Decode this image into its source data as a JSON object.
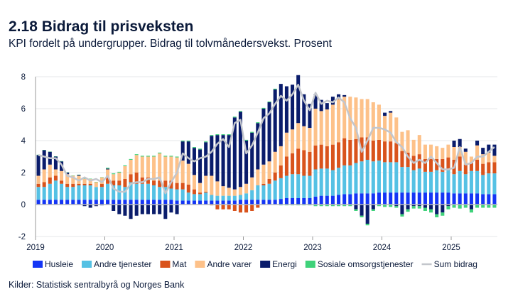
{
  "title": "2.18 Bidrag til prisveksten",
  "subtitle": "KPI fordelt på undergrupper. Bidrag til tolvmånedersvekst. Prosent",
  "source": "Kilder: Statistisk sentralbyrå og Norges Bank",
  "chart_data": {
    "type": "bar",
    "stacked": true,
    "title": "2.18 Bidrag til prisveksten",
    "ylabel": "",
    "xlabel": "",
    "ylim": [
      -2,
      8
    ],
    "yticks": [
      -2,
      0,
      2,
      4,
      6,
      8
    ],
    "xticks": [
      "2019",
      "2020",
      "2021",
      "2022",
      "2023",
      "2024",
      "2025"
    ],
    "x_start": "2019-01",
    "x_end": "2025-08",
    "frequency": "monthly",
    "grid": true,
    "legend_position": "bottom",
    "series": [
      {
        "name": "Husleie",
        "color": "#1435f5",
        "values": [
          0.3,
          0.3,
          0.3,
          0.3,
          0.3,
          0.3,
          0.3,
          0.3,
          0.3,
          0.3,
          0.3,
          0.3,
          0.3,
          0.3,
          0.3,
          0.3,
          0.3,
          0.3,
          0.3,
          0.3,
          0.3,
          0.3,
          0.3,
          0.3,
          0.25,
          0.25,
          0.25,
          0.25,
          0.25,
          0.25,
          0.25,
          0.25,
          0.25,
          0.25,
          0.25,
          0.3,
          0.3,
          0.3,
          0.3,
          0.3,
          0.3,
          0.3,
          0.35,
          0.4,
          0.4,
          0.4,
          0.4,
          0.4,
          0.5,
          0.55,
          0.55,
          0.55,
          0.6,
          0.65,
          0.65,
          0.7,
          0.7,
          0.7,
          0.7,
          0.75,
          0.75,
          0.75,
          0.75,
          0.75,
          0.75,
          0.75,
          0.75,
          0.75,
          0.75,
          0.75,
          0.75,
          0.75,
          0.7,
          0.7,
          0.7,
          0.7,
          0.7,
          0.65,
          0.65,
          0.65
        ]
      },
      {
        "name": "Andre tjenester",
        "color": "#55c1e4",
        "values": [
          0.8,
          0.8,
          1.0,
          1.2,
          1.0,
          0.8,
          0.8,
          0.9,
          0.9,
          0.9,
          0.8,
          0.8,
          1.0,
          0.9,
          0.9,
          0.8,
          1.1,
          1.0,
          1.0,
          1.0,
          0.9,
          0.8,
          0.8,
          0.7,
          0.7,
          0.7,
          0.5,
          0.4,
          0.4,
          0.5,
          0.35,
          0.3,
          0.3,
          0.3,
          0.3,
          0.3,
          0.4,
          0.6,
          0.9,
          0.9,
          1.0,
          1.2,
          1.3,
          1.4,
          1.5,
          1.5,
          1.4,
          1.4,
          1.7,
          1.7,
          1.7,
          1.6,
          1.7,
          1.8,
          1.8,
          1.9,
          2.0,
          2.1,
          2.0,
          2.0,
          1.9,
          1.9,
          1.9,
          1.6,
          1.6,
          1.4,
          1.5,
          1.3,
          1.3,
          1.4,
          1.3,
          1.4,
          1.2,
          1.4,
          1.2,
          1.4,
          1.4,
          1.2,
          1.3,
          1.3
        ]
      },
      {
        "name": "Mat",
        "color": "#d9531c",
        "values": [
          0.2,
          0.3,
          0.4,
          0.3,
          0.2,
          0.2,
          0.2,
          0.1,
          0.1,
          0.1,
          -0.05,
          0.2,
          0.4,
          0.3,
          0.3,
          0.5,
          0.5,
          0.7,
          0.4,
          0.4,
          0.3,
          0.4,
          0.4,
          0.5,
          0.4,
          0.4,
          0.5,
          0.3,
          0.1,
          0.05,
          -0.05,
          -0.3,
          -0.3,
          -0.3,
          -0.4,
          -0.5,
          -0.5,
          -0.4,
          -0.2,
          0.1,
          0.3,
          0.5,
          0.8,
          1.2,
          1.3,
          1.6,
          1.6,
          1.5,
          1.5,
          1.5,
          1.4,
          1.6,
          1.6,
          1.7,
          1.6,
          1.5,
          1.5,
          1.4,
          1.3,
          1.3,
          1.3,
          1.3,
          1.2,
          1.0,
          0.9,
          0.9,
          0.9,
          0.8,
          0.8,
          0.7,
          0.8,
          0.8,
          0.9,
          0.9,
          0.6,
          0.5,
          0.7,
          0.7,
          0.7,
          0.7
        ]
      },
      {
        "name": "Andre varer",
        "color": "#fdc189",
        "values": [
          0.5,
          0.8,
          0.8,
          0.4,
          0.6,
          0.6,
          0.5,
          0.5,
          0.3,
          0.3,
          0.3,
          0.4,
          0.5,
          0.4,
          0.5,
          0.8,
          0.9,
          1.1,
          1.3,
          1.3,
          1.5,
          1.7,
          1.5,
          1.5,
          1.6,
          1.4,
          1.3,
          0.9,
          0.6,
          1.0,
          1.2,
          0.9,
          0.6,
          0.5,
          0.4,
          0.5,
          0.6,
          0.8,
          1.0,
          1.2,
          1.1,
          1.3,
          1.2,
          1.5,
          1.5,
          1.6,
          1.5,
          1.5,
          2.3,
          2.1,
          2.3,
          2.5,
          2.7,
          2.6,
          2.7,
          2.6,
          2.4,
          2.4,
          2.4,
          2.2,
          1.6,
          1.8,
          1.6,
          1.2,
          1.4,
          1.0,
          1.2,
          0.9,
          0.9,
          0.8,
          0.7,
          0.8,
          0.8,
          0.6,
          0.8,
          0.4,
          0.9,
          0.6,
          0.6,
          0.4
        ]
      },
      {
        "name": "Energi",
        "color": "#0a1c6b",
        "values": [
          1.3,
          1.2,
          0.8,
          0.8,
          0.6,
          0.1,
          0.0,
          0.05,
          -0.1,
          -0.2,
          -0.05,
          -0.05,
          0.05,
          -0.4,
          -0.6,
          -0.7,
          -0.9,
          -0.7,
          -0.6,
          -0.6,
          -0.6,
          -0.6,
          -0.9,
          -0.5,
          -0.6,
          1.2,
          1.4,
          1.7,
          2.1,
          2.1,
          2.5,
          2.9,
          3.2,
          3.3,
          4.5,
          4.7,
          2.7,
          2.8,
          2.9,
          3.5,
          3.7,
          3.9,
          3.9,
          2.9,
          2.8,
          3.0,
          2.0,
          1.5,
          0.9,
          0.7,
          0.4,
          0.5,
          0.3,
          0.1,
          0.0,
          -0.3,
          -0.7,
          -1.2,
          -0.3,
          0.0,
          0.2,
          0.1,
          -0.1,
          -0.6,
          -0.3,
          -0.1,
          -0.1,
          -0.2,
          -0.3,
          -0.6,
          -0.5,
          -0.1,
          0.4,
          0.5,
          0.2,
          -0.3,
          0.3,
          0.4,
          0.5,
          0.7
        ]
      },
      {
        "name": "Sosiale omsorgstjenester",
        "color": "#3fd27a",
        "values": [
          0.02,
          0.02,
          0.02,
          0.02,
          0.02,
          0.02,
          0.02,
          0.02,
          0.02,
          0.02,
          0.02,
          0.02,
          0.05,
          0.05,
          0.05,
          0.05,
          0.05,
          0.05,
          0.05,
          0.05,
          0.05,
          0.05,
          0.05,
          0.05,
          0.05,
          0.05,
          0.05,
          0.05,
          0.05,
          0.05,
          0.05,
          0.05,
          0.05,
          0.05,
          0.05,
          0.05,
          0.05,
          0.05,
          0.05,
          0.05,
          0.05,
          0.05,
          -0.05,
          -0.05,
          -0.05,
          -0.05,
          -0.05,
          -0.05,
          -0.1,
          -0.1,
          -0.1,
          -0.1,
          -0.1,
          -0.1,
          -0.1,
          -0.1,
          -0.1,
          -0.1,
          -0.1,
          -0.1,
          -0.15,
          -0.15,
          -0.1,
          -0.15,
          -0.15,
          -0.15,
          -0.15,
          -0.2,
          -0.2,
          -0.2,
          -0.2,
          -0.2,
          -0.2,
          -0.25,
          -0.2,
          -0.2,
          -0.2,
          -0.2,
          -0.2,
          -0.2
        ]
      }
    ],
    "line": {
      "name": "Sum bidrag",
      "color": "#c3c6cc",
      "values": [
        3.1,
        3.0,
        2.9,
        2.9,
        2.5,
        1.8,
        1.7,
        1.5,
        1.7,
        1.5,
        1.6,
        1.4,
        1.8,
        1.0,
        0.8,
        0.8,
        1.3,
        1.4,
        1.4,
        1.6,
        1.6,
        1.7,
        0.7,
        1.4,
        2.0,
        3.2,
        2.9,
        2.7,
        2.9,
        3.0,
        3.3,
        3.8,
        4.1,
        3.6,
        5.1,
        5.3,
        3.2,
        3.7,
        4.5,
        5.4,
        5.7,
        6.3,
        6.8,
        6.5,
        6.9,
        7.5,
        6.5,
        5.9,
        7.0,
        6.3,
        6.5,
        6.4,
        6.7,
        6.4,
        5.4,
        4.8,
        3.3,
        4.0,
        4.8,
        4.8,
        4.7,
        4.5,
        3.9,
        3.6,
        3.0,
        2.6,
        2.8,
        2.6,
        3.0,
        2.6,
        2.2,
        2.2,
        2.3,
        3.6,
        2.5,
        2.6,
        3.0,
        3.0,
        3.3,
        3.6
      ]
    }
  }
}
